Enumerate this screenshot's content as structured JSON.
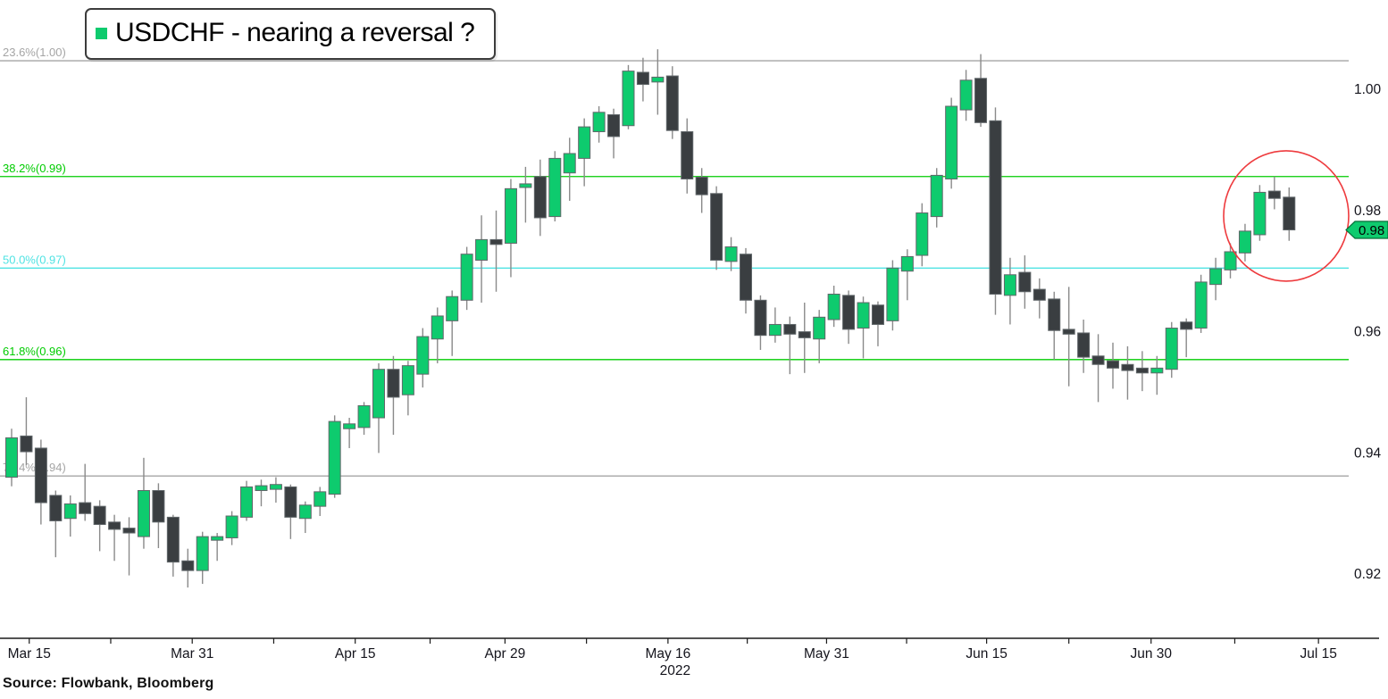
{
  "title": {
    "text": "USDCHF - nearing a reversal ?"
  },
  "source": "Source: Flowbank, Bloomberg",
  "colors": {
    "up_candle": "#0ecb6e",
    "down_candle": "#3a3e41",
    "wick": "#8a8a8a",
    "body_outline": "#61676a",
    "fib_gray": "#a5a5a5",
    "fib_green": "#00cc00",
    "fib_cyan": "#4fe3e3",
    "axis_text": "#14141c",
    "price_tag_bg": "#0ecb6e",
    "price_tag_border": "#066d38",
    "price_tag_text": "#000000",
    "annotation_red": "#ee3b3e",
    "axis_line": "#1a1a1a"
  },
  "chart_data": {
    "type": "candlestick",
    "symbol": "USDCHF",
    "title": "USDCHF - nearing a reversal ?",
    "legend_marker_color": "#0ecb6e",
    "y_axis": {
      "side": "right",
      "labels": [
        {
          "text": "1.00",
          "price": 1.0
        },
        {
          "text": "0.98",
          "price": 0.98
        },
        {
          "text": "0.96",
          "price": 0.96
        },
        {
          "text": "0.94",
          "price": 0.94
        },
        {
          "text": "0.92",
          "price": 0.92
        }
      ]
    },
    "x_axis": {
      "year_label": "2022",
      "year_tick_i": 44.7,
      "labels": [
        {
          "text": "Mar 15",
          "i": 1.2
        },
        {
          "text": "Mar 31",
          "i": 12.3
        },
        {
          "text": "Apr 15",
          "i": 23.4
        },
        {
          "text": "Apr 29",
          "i": 33.6
        },
        {
          "text": "May 16",
          "i": 44.7
        },
        {
          "text": "May 31",
          "i": 55.5
        },
        {
          "text": "Jun 15",
          "i": 66.4
        },
        {
          "text": "Jun 30",
          "i": 77.6
        },
        {
          "text": "Jul 15",
          "i": 89.0
        }
      ]
    },
    "fib_levels": [
      {
        "label": "23.6%(1.00)",
        "price": 1.0047,
        "color_key": "fib_gray"
      },
      {
        "label": "38.2%(0.99)",
        "price": 0.9856,
        "color_key": "fib_green"
      },
      {
        "label": "50.0%(0.97)",
        "price": 0.9705,
        "color_key": "fib_cyan"
      },
      {
        "label": "61.8%(0.96)",
        "price": 0.9554,
        "color_key": "fib_green"
      },
      {
        "label": "76.4%(0.94)",
        "price": 0.9362,
        "color_key": "fib_gray"
      }
    ],
    "last_price_tag": {
      "text": "0.98",
      "price": 0.9768
    },
    "annotation_circle": {
      "i": 86.8,
      "price": 0.9791,
      "rx": 70,
      "ry": 73
    },
    "candles_format": [
      "open",
      "high",
      "low",
      "close"
    ],
    "candles": [
      [
        0.936,
        0.944,
        0.9345,
        0.9425
      ],
      [
        0.9428,
        0.9492,
        0.938,
        0.9402
      ],
      [
        0.9408,
        0.9422,
        0.9282,
        0.9318
      ],
      [
        0.933,
        0.9338,
        0.9228,
        0.9288
      ],
      [
        0.9292,
        0.933,
        0.9262,
        0.9316
      ],
      [
        0.9318,
        0.9382,
        0.9288,
        0.93
      ],
      [
        0.9312,
        0.9322,
        0.9238,
        0.9282
      ],
      [
        0.9286,
        0.9298,
        0.9222,
        0.9274
      ],
      [
        0.9276,
        0.9294,
        0.9198,
        0.9268
      ],
      [
        0.9262,
        0.9392,
        0.9242,
        0.9338
      ],
      [
        0.9338,
        0.935,
        0.9243,
        0.9286
      ],
      [
        0.9294,
        0.9298,
        0.9196,
        0.922
      ],
      [
        0.9222,
        0.9242,
        0.9178,
        0.9206
      ],
      [
        0.9206,
        0.927,
        0.9184,
        0.9262
      ],
      [
        0.9256,
        0.9268,
        0.9222,
        0.9262
      ],
      [
        0.926,
        0.9304,
        0.9248,
        0.9296
      ],
      [
        0.9294,
        0.9354,
        0.9288,
        0.9344
      ],
      [
        0.9338,
        0.9356,
        0.9312,
        0.9346
      ],
      [
        0.934,
        0.936,
        0.9318,
        0.9348
      ],
      [
        0.9344,
        0.9348,
        0.9258,
        0.9294
      ],
      [
        0.9292,
        0.932,
        0.9268,
        0.9314
      ],
      [
        0.9312,
        0.9344,
        0.9296,
        0.9336
      ],
      [
        0.9332,
        0.9462,
        0.9326,
        0.9452
      ],
      [
        0.944,
        0.9458,
        0.9408,
        0.9448
      ],
      [
        0.9442,
        0.9484,
        0.943,
        0.9478
      ],
      [
        0.9458,
        0.9548,
        0.94,
        0.9538
      ],
      [
        0.9538,
        0.956,
        0.943,
        0.9492
      ],
      [
        0.9496,
        0.9552,
        0.9462,
        0.9544
      ],
      [
        0.953,
        0.9606,
        0.9508,
        0.9592
      ],
      [
        0.9588,
        0.964,
        0.9548,
        0.9626
      ],
      [
        0.9618,
        0.9668,
        0.956,
        0.9658
      ],
      [
        0.9652,
        0.974,
        0.9636,
        0.9728
      ],
      [
        0.9718,
        0.9792,
        0.9648,
        0.9752
      ],
      [
        0.9752,
        0.98,
        0.9666,
        0.9744
      ],
      [
        0.9746,
        0.9852,
        0.969,
        0.9836
      ],
      [
        0.9838,
        0.9872,
        0.978,
        0.9844
      ],
      [
        0.9856,
        0.9884,
        0.9758,
        0.9788
      ],
      [
        0.979,
        0.9898,
        0.9782,
        0.9886
      ],
      [
        0.9862,
        0.992,
        0.9816,
        0.9894
      ],
      [
        0.9886,
        0.9952,
        0.984,
        0.9938
      ],
      [
        0.993,
        0.9972,
        0.9912,
        0.9962
      ],
      [
        0.9958,
        0.9968,
        0.9886,
        0.9922
      ],
      [
        0.994,
        1.004,
        0.9934,
        1.003
      ],
      [
        1.0028,
        1.0052,
        0.998,
        1.0008
      ],
      [
        1.0012,
        1.0066,
        0.9958,
        1.002
      ],
      [
        1.0022,
        1.0038,
        0.9918,
        0.9932
      ],
      [
        0.993,
        0.9952,
        0.9828,
        0.9852
      ],
      [
        0.9855,
        0.987,
        0.9796,
        0.9826
      ],
      [
        0.9828,
        0.984,
        0.9702,
        0.9718
      ],
      [
        0.9716,
        0.9756,
        0.97,
        0.974
      ],
      [
        0.9728,
        0.9738,
        0.963,
        0.9652
      ],
      [
        0.9652,
        0.966,
        0.957,
        0.9594
      ],
      [
        0.9594,
        0.964,
        0.9582,
        0.9612
      ],
      [
        0.9612,
        0.9625,
        0.953,
        0.9596
      ],
      [
        0.96,
        0.9648,
        0.9532,
        0.959
      ],
      [
        0.9588,
        0.9636,
        0.9548,
        0.9624
      ],
      [
        0.962,
        0.9676,
        0.9608,
        0.9662
      ],
      [
        0.966,
        0.9668,
        0.958,
        0.9604
      ],
      [
        0.9606,
        0.9658,
        0.9556,
        0.9648
      ],
      [
        0.9644,
        0.965,
        0.9576,
        0.9612
      ],
      [
        0.9618,
        0.9718,
        0.9602,
        0.9705
      ],
      [
        0.97,
        0.9736,
        0.9652,
        0.9724
      ],
      [
        0.9726,
        0.9812,
        0.9708,
        0.9796
      ],
      [
        0.979,
        0.987,
        0.9772,
        0.9858
      ],
      [
        0.9852,
        0.9986,
        0.9836,
        0.9972
      ],
      [
        0.9966,
        1.0032,
        0.9948,
        1.0015
      ],
      [
        1.0018,
        1.0058,
        0.9938,
        0.9945
      ],
      [
        0.9948,
        0.997,
        0.9628,
        0.9662
      ],
      [
        0.966,
        0.9722,
        0.9612,
        0.9694
      ],
      [
        0.9698,
        0.9726,
        0.9638,
        0.9666
      ],
      [
        0.967,
        0.9688,
        0.9622,
        0.9652
      ],
      [
        0.9654,
        0.9666,
        0.9554,
        0.9602
      ],
      [
        0.9604,
        0.9674,
        0.951,
        0.9596
      ],
      [
        0.9598,
        0.962,
        0.9532,
        0.9558
      ],
      [
        0.956,
        0.9596,
        0.9484,
        0.9546
      ],
      [
        0.9552,
        0.9582,
        0.9506,
        0.954
      ],
      [
        0.9546,
        0.9576,
        0.9488,
        0.9536
      ],
      [
        0.954,
        0.9568,
        0.9502,
        0.9532
      ],
      [
        0.9532,
        0.956,
        0.9496,
        0.954
      ],
      [
        0.9538,
        0.9616,
        0.9524,
        0.9606
      ],
      [
        0.9616,
        0.9622,
        0.9558,
        0.9604
      ],
      [
        0.9606,
        0.9694,
        0.9598,
        0.9682
      ],
      [
        0.9678,
        0.9722,
        0.9652,
        0.9704
      ],
      [
        0.9702,
        0.9746,
        0.9688,
        0.9732
      ],
      [
        0.973,
        0.9778,
        0.9716,
        0.9766
      ],
      [
        0.976,
        0.9842,
        0.975,
        0.983
      ],
      [
        0.9832,
        0.9856,
        0.9802,
        0.982
      ],
      [
        0.9822,
        0.9838,
        0.975,
        0.9768
      ]
    ]
  }
}
